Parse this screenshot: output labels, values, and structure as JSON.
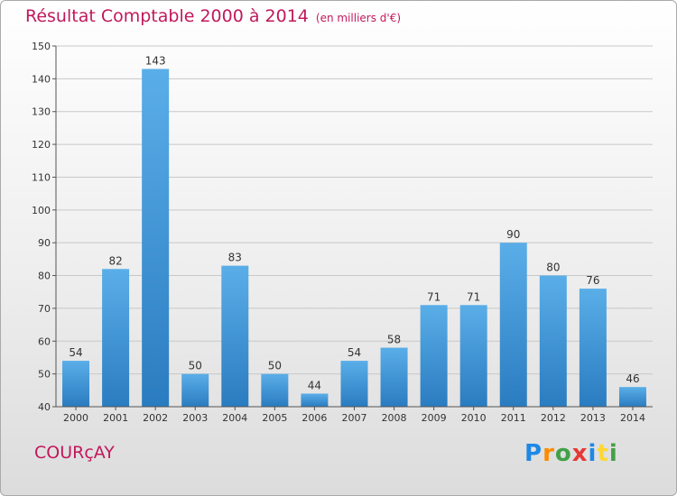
{
  "title": "Résultat Comptable 2000 à 2014",
  "subtitle": "(en milliers d'€)",
  "commune": "COURçAY",
  "logo": {
    "letters": [
      {
        "ch": "P",
        "color": "#1e88e5"
      },
      {
        "ch": "r",
        "color": "#fb8c00"
      },
      {
        "ch": "o",
        "color": "#43a047"
      },
      {
        "ch": "x",
        "color": "#e53935"
      },
      {
        "ch": "i",
        "color": "#1e88e5"
      },
      {
        "ch": "t",
        "color": "#fdd835"
      },
      {
        "ch": "i",
        "color": "#43a047"
      }
    ]
  },
  "colors": {
    "title": "#c2185b",
    "bar_top": "#5aaee8",
    "bar_bottom": "#2a7cc0",
    "grid": "#c8c8c8"
  },
  "chart_data": {
    "type": "bar",
    "title": "Résultat Comptable 2000 à 2014",
    "subtitle": "(en milliers d'€)",
    "categories": [
      "2000",
      "2001",
      "2002",
      "2003",
      "2004",
      "2005",
      "2006",
      "2007",
      "2008",
      "2009",
      "2010",
      "2011",
      "2012",
      "2013",
      "2014"
    ],
    "values": [
      54,
      82,
      143,
      50,
      83,
      50,
      44,
      54,
      58,
      71,
      71,
      90,
      80,
      76,
      46
    ],
    "ylim": [
      40,
      150
    ],
    "yticks": [
      40,
      50,
      60,
      70,
      80,
      90,
      100,
      110,
      120,
      130,
      140,
      150
    ],
    "grid": true,
    "xlabel": "",
    "ylabel": ""
  }
}
